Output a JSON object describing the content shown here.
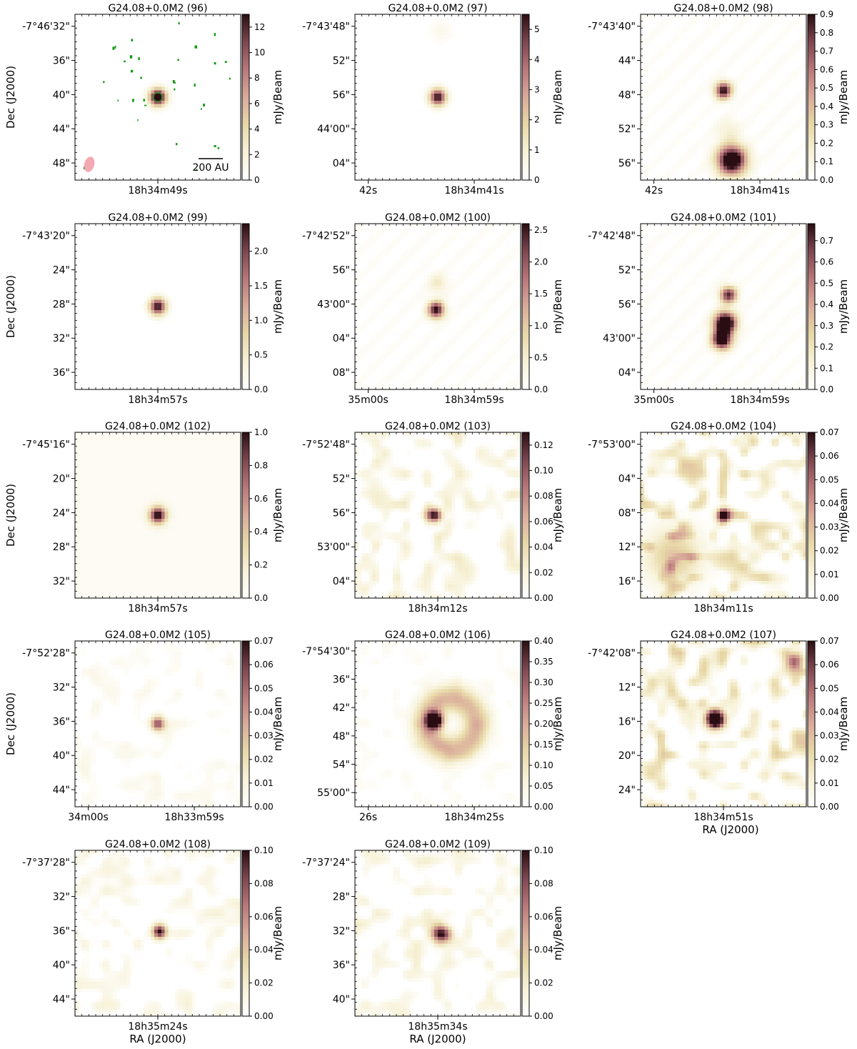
{
  "colorbar_unit": "mJy/Beam",
  "dec_axis_label": "Dec (J2000)",
  "ra_axis_label": "RA (J2000)",
  "colormap": [
    "#ffffff",
    "#f7f2d8",
    "#e8d8a8",
    "#d9ab9a",
    "#b9777a",
    "#7d4650",
    "#2a0d12"
  ],
  "scale_bar_label": "200 AU",
  "chart_data": [
    {
      "type": "heatmap",
      "title": "G24.08+0.0M2 (96)",
      "ra_ticks": [
        "18h34m49s"
      ],
      "dec_ticks": [
        "-7°46'32\"",
        "36\"",
        "40\"",
        "44\"",
        "48\""
      ],
      "cbar_range": [
        0,
        13
      ],
      "cbar_ticks": [
        "0",
        "2",
        "4",
        "6",
        "8",
        "10",
        "12"
      ],
      "sources": [
        {
          "ra": 0.5,
          "dec": 0.5,
          "sigma": 0.035,
          "amp": 1.2
        }
      ],
      "speckle": true,
      "beam": true,
      "scale_bar": true
    },
    {
      "type": "heatmap",
      "title": "G24.08+0.0M2 (97)",
      "ra_ticks": [
        "42s",
        "18h34m41s"
      ],
      "dec_ticks": [
        "-7°43'48\"",
        "52\"",
        "56\"",
        "44'00\"",
        "04\""
      ],
      "cbar_range": [
        0,
        5.5
      ],
      "cbar_ticks": [
        "0",
        "1",
        "2",
        "3",
        "4",
        "5"
      ],
      "sources": [
        {
          "ra": 0.5,
          "dec": 0.5,
          "sigma": 0.035,
          "amp": 1.0
        },
        {
          "ra": 0.52,
          "dec": 0.1,
          "sigma": 0.05,
          "amp": 0.08
        }
      ]
    },
    {
      "type": "heatmap",
      "title": "G24.08+0.0M2 (98)",
      "ra_ticks": [
        "42s",
        "18h34m41s"
      ],
      "dec_ticks": [
        "-7°43'40\"",
        "44\"",
        "48\"",
        "52\"",
        "56\""
      ],
      "cbar_range": [
        0,
        0.9
      ],
      "cbar_ticks": [
        "0.0",
        "0.1",
        "0.2",
        "0.3",
        "0.4",
        "0.5",
        "0.6",
        "0.7",
        "0.8",
        "0.9"
      ],
      "sources": [
        {
          "ra": 0.5,
          "dec": 0.46,
          "sigma": 0.035,
          "amp": 1.0
        },
        {
          "ra": 0.55,
          "dec": 0.88,
          "sigma": 0.06,
          "amp": 1.3
        },
        {
          "ra": 0.53,
          "dec": 0.7,
          "sigma": 0.05,
          "amp": 0.15
        }
      ],
      "stripes": true
    },
    {
      "type": "heatmap",
      "title": "G24.08+0.0M2 (99)",
      "ra_ticks": [
        "18h34m57s"
      ],
      "dec_ticks": [
        "-7°43'20\"",
        "24\"",
        "28\"",
        "32\"",
        "36\""
      ],
      "cbar_range": [
        0,
        2.4
      ],
      "cbar_ticks": [
        "0.0",
        "0.5",
        "1.0",
        "1.5",
        "2.0"
      ],
      "sources": [
        {
          "ra": 0.5,
          "dec": 0.5,
          "sigma": 0.035,
          "amp": 1.0
        }
      ]
    },
    {
      "type": "heatmap",
      "title": "G24.08+0.0M2 (100)",
      "ra_ticks": [
        "35m00s",
        "18h34m59s"
      ],
      "dec_ticks": [
        "-7°42'52\"",
        "56\"",
        "43'00\"",
        "04\"",
        "08\""
      ],
      "cbar_range": [
        0,
        2.6
      ],
      "cbar_ticks": [
        "0.0",
        "0.5",
        "1.0",
        "1.5",
        "2.0",
        "2.5"
      ],
      "sources": [
        {
          "ra": 0.49,
          "dec": 0.52,
          "sigma": 0.035,
          "amp": 1.0
        },
        {
          "ra": 0.5,
          "dec": 0.36,
          "sigma": 0.04,
          "amp": 0.2
        }
      ],
      "stripes": true
    },
    {
      "type": "heatmap",
      "title": "G24.08+0.0M2 (101)",
      "ra_ticks": [
        "35m00s",
        "18h34m59s"
      ],
      "dec_ticks": [
        "-7°42'48\"",
        "52\"",
        "56\"",
        "43'00\"",
        "04\""
      ],
      "cbar_range": [
        0,
        0.78
      ],
      "cbar_ticks": [
        "0.0",
        "0.1",
        "0.2",
        "0.3",
        "0.4",
        "0.5",
        "0.6",
        "0.7"
      ],
      "sources": [
        {
          "ra": 0.51,
          "dec": 0.6,
          "sigma": 0.045,
          "amp": 1.4
        },
        {
          "ra": 0.53,
          "dec": 0.43,
          "sigma": 0.035,
          "amp": 0.9
        },
        {
          "ra": 0.49,
          "dec": 0.7,
          "sigma": 0.04,
          "amp": 1.2
        }
      ],
      "stripes": true
    },
    {
      "type": "heatmap",
      "title": "G24.08+0.0M2 (102)",
      "ra_ticks": [
        "18h34m57s"
      ],
      "dec_ticks": [
        "-7°45'16\"",
        "20\"",
        "24\"",
        "28\"",
        "32\""
      ],
      "cbar_range": [
        0,
        1.0
      ],
      "cbar_ticks": [
        "0.0",
        "0.2",
        "0.4",
        "0.6",
        "0.8",
        "1.0"
      ],
      "sources": [
        {
          "ra": 0.5,
          "dec": 0.5,
          "sigma": 0.035,
          "amp": 1.0
        }
      ],
      "haze": true
    },
    {
      "type": "heatmap",
      "title": "G24.08+0.0M2 (103)",
      "ra_ticks": [
        "18h34m12s"
      ],
      "dec_ticks": [
        "-7°52'48\"",
        "52\"",
        "56\"",
        "53'00\"",
        "04\""
      ],
      "cbar_range": [
        0,
        0.13
      ],
      "cbar_ticks": [
        "0.00",
        "0.02",
        "0.04",
        "0.06",
        "0.08",
        "0.10",
        "0.12"
      ],
      "sources": [
        {
          "ra": 0.48,
          "dec": 0.5,
          "sigma": 0.03,
          "amp": 1.0
        }
      ],
      "noise": 0.35,
      "noise_seed": 7
    },
    {
      "type": "heatmap",
      "title": "G24.08+0.0M2 (104)",
      "ra_ticks": [
        "18h34m11s"
      ],
      "dec_ticks": [
        "-7°53'00\"",
        "04\"",
        "08\"",
        "12\"",
        "16\""
      ],
      "cbar_range": [
        0,
        0.07
      ],
      "cbar_ticks": [
        "0.00",
        "0.01",
        "0.02",
        "0.03",
        "0.04",
        "0.05",
        "0.06",
        "0.07"
      ],
      "sources": [
        {
          "ra": 0.5,
          "dec": 0.5,
          "sigma": 0.03,
          "amp": 1.0
        },
        {
          "ra": 0.2,
          "dec": 0.75,
          "sigma": 0.12,
          "amp": 0.4
        }
      ],
      "noise": 0.55,
      "noise_seed": 13
    },
    {
      "type": "heatmap",
      "title": "G24.08+0.0M2 (105)",
      "ra_ticks": [
        "34m00s",
        "18h33m59s"
      ],
      "dec_ticks": [
        "-7°52'28\"",
        "32\"",
        "36\"",
        "40\"",
        "44\""
      ],
      "cbar_range": [
        0,
        0.07
      ],
      "cbar_ticks": [
        "0.00",
        "0.01",
        "0.02",
        "0.03",
        "0.04",
        "0.05",
        "0.06",
        "0.07"
      ],
      "sources": [
        {
          "ra": 0.5,
          "dec": 0.5,
          "sigma": 0.03,
          "amp": 0.7
        }
      ],
      "noise": 0.15,
      "noise_seed": 21
    },
    {
      "type": "heatmap",
      "title": "G24.08+0.0M2 (106)",
      "ra_ticks": [
        "26s",
        "18h34m25s"
      ],
      "dec_ticks": [
        "-7°54'30\"",
        "36\"",
        "42\"",
        "48\"",
        "54\"",
        "55'00\""
      ],
      "cbar_range": [
        0,
        0.4
      ],
      "cbar_ticks": [
        "0.00",
        "0.05",
        "0.10",
        "0.15",
        "0.20",
        "0.25",
        "0.30",
        "0.35",
        "0.40"
      ],
      "sources": [
        {
          "ra": 0.48,
          "dec": 0.48,
          "sigma": 0.035,
          "amp": 1.3
        }
      ],
      "ring": {
        "ra": 0.58,
        "dec": 0.5,
        "r": 0.15,
        "width": 0.06,
        "amp": 0.45
      },
      "noise": 0.1,
      "noise_seed": 5
    },
    {
      "type": "heatmap",
      "title": "G24.08+0.0M2 (107)",
      "ra_ticks": [
        "18h34m51s"
      ],
      "dec_ticks": [
        "-7°42'08\"",
        "12\"",
        "16\"",
        "20\"",
        "24\""
      ],
      "cbar_range": [
        0,
        0.07
      ],
      "cbar_ticks": [
        "0.00",
        "0.01",
        "0.02",
        "0.03",
        "0.04",
        "0.05",
        "0.06",
        "0.07"
      ],
      "sources": [
        {
          "ra": 0.45,
          "dec": 0.47,
          "sigma": 0.04,
          "amp": 1.5
        },
        {
          "ra": 0.93,
          "dec": 0.12,
          "sigma": 0.04,
          "amp": 0.7
        }
      ],
      "noise": 0.55,
      "noise_seed": 31
    },
    {
      "type": "heatmap",
      "title": "G24.08+0.0M2 (108)",
      "ra_ticks": [
        "18h35m24s"
      ],
      "dec_ticks": [
        "-7°37'28\"",
        "32\"",
        "36\"",
        "40\"",
        "44\""
      ],
      "cbar_range": [
        0,
        0.1
      ],
      "cbar_ticks": [
        "0.00",
        "0.02",
        "0.04",
        "0.06",
        "0.08",
        "0.10"
      ],
      "sources": [
        {
          "ra": 0.51,
          "dec": 0.49,
          "sigma": 0.03,
          "amp": 1.0
        }
      ],
      "noise": 0.25,
      "noise_seed": 41
    },
    {
      "type": "heatmap",
      "title": "G24.08+0.0M2 (109)",
      "ra_ticks": [
        "18h35m34s"
      ],
      "dec_ticks": [
        "-7°37'24\"",
        "28\"",
        "32\"",
        "36\"",
        "40\""
      ],
      "cbar_range": [
        0,
        0.1
      ],
      "cbar_ticks": [
        "0.00",
        "0.02",
        "0.04",
        "0.06",
        "0.08",
        "0.10"
      ],
      "sources": [
        {
          "ra": 0.52,
          "dec": 0.51,
          "sigma": 0.04,
          "amp": 0.85
        }
      ],
      "noise": 0.3,
      "noise_seed": 51
    }
  ]
}
